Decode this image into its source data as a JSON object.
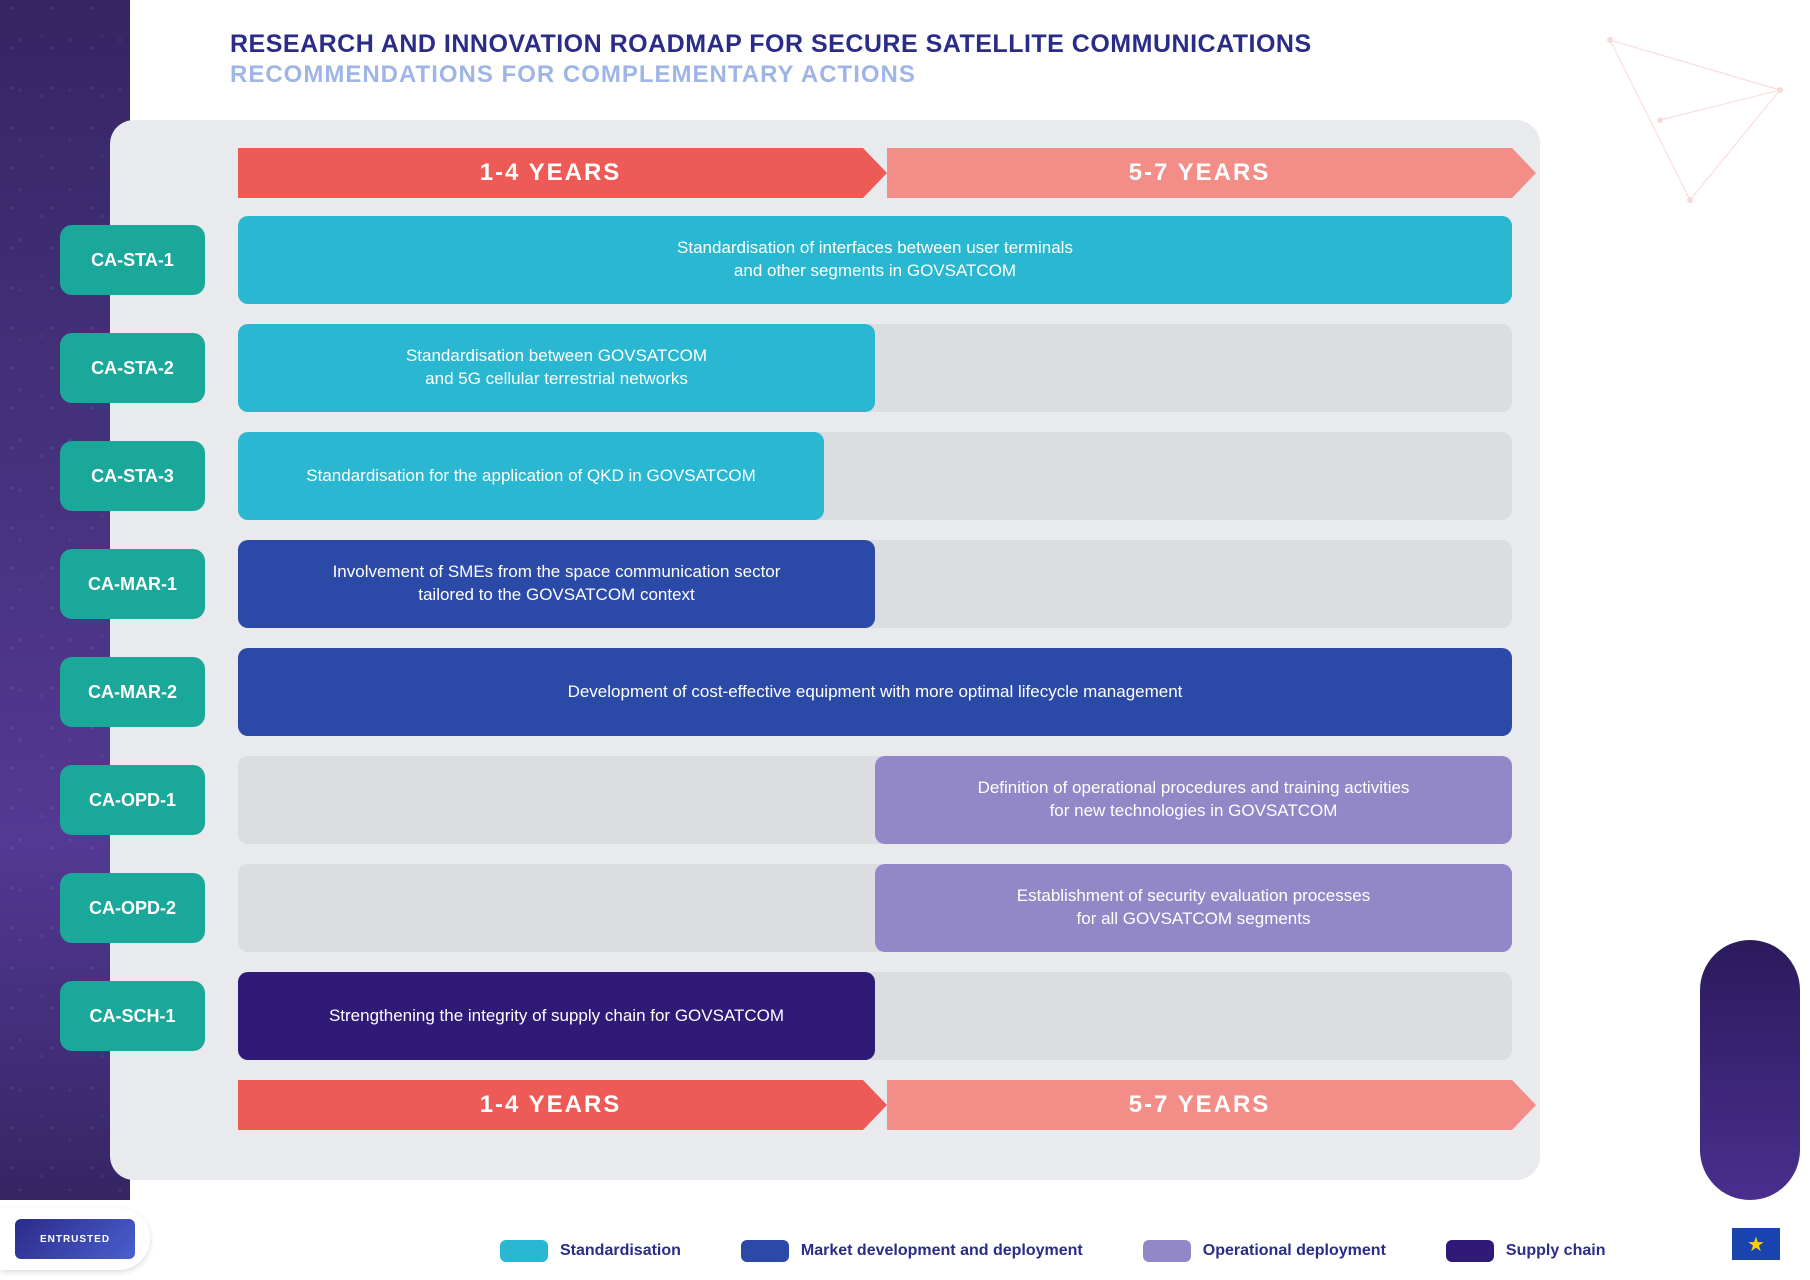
{
  "title_main": "RESEARCH AND INNOVATION ROADMAP FOR SECURE SATELLITE COMMUNICATIONS",
  "title_sub": "RECOMMENDATIONS FOR COMPLEMENTARY ACTIONS",
  "timeline": {
    "period1": {
      "label": "1-4 YEARS",
      "color": "#ee5a56"
    },
    "period2": {
      "label": "5-7 YEARS",
      "color": "#f28d87"
    }
  },
  "categories": {
    "standardisation": {
      "label": "Standardisation",
      "color": "#2ab7d1"
    },
    "market": {
      "label": "Market development and deployment",
      "color": "#2b4aa8"
    },
    "operational": {
      "label": "Operational deployment",
      "color": "#9288c8"
    },
    "supply": {
      "label": "Supply chain",
      "color": "#2f1a78"
    }
  },
  "row_label_color": "#1aa89a",
  "track_bg": "#dcdde0",
  "panel_bg": "#e8eaed",
  "rows": [
    {
      "id": "CA-STA-1",
      "cat": "standardisation",
      "start": 0,
      "end": 100,
      "text": "Standardisation of interfaces between user terminals\nand other segments in GOVSATCOM"
    },
    {
      "id": "CA-STA-2",
      "cat": "standardisation",
      "start": 0,
      "end": 50,
      "text": "Standardisation between GOVSATCOM\nand 5G cellular terrestrial networks"
    },
    {
      "id": "CA-STA-3",
      "cat": "standardisation",
      "start": 0,
      "end": 46,
      "text": "Standardisation for the application of QKD in GOVSATCOM"
    },
    {
      "id": "CA-MAR-1",
      "cat": "market",
      "start": 0,
      "end": 50,
      "text": "Involvement of SMEs from the space communication sector\ntailored to  the GOVSATCOM context"
    },
    {
      "id": "CA-MAR-2",
      "cat": "market",
      "start": 0,
      "end": 100,
      "text": "Development of cost-effective equipment with more optimal lifecycle management"
    },
    {
      "id": "CA-OPD-1",
      "cat": "operational",
      "start": 50,
      "end": 100,
      "text": "Definition of operational procedures and training activities\nfor new technologies in GOVSATCOM"
    },
    {
      "id": "CA-OPD-2",
      "cat": "operational",
      "start": 50,
      "end": 100,
      "text": "Establishment of security evaluation processes\nfor all GOVSATCOM segments"
    },
    {
      "id": "CA-SCH-1",
      "cat": "supply",
      "start": 0,
      "end": 50,
      "text": "Strengthening the integrity of supply chain for GOVSATCOM"
    }
  ],
  "logo_text": "ENTRUSTED"
}
